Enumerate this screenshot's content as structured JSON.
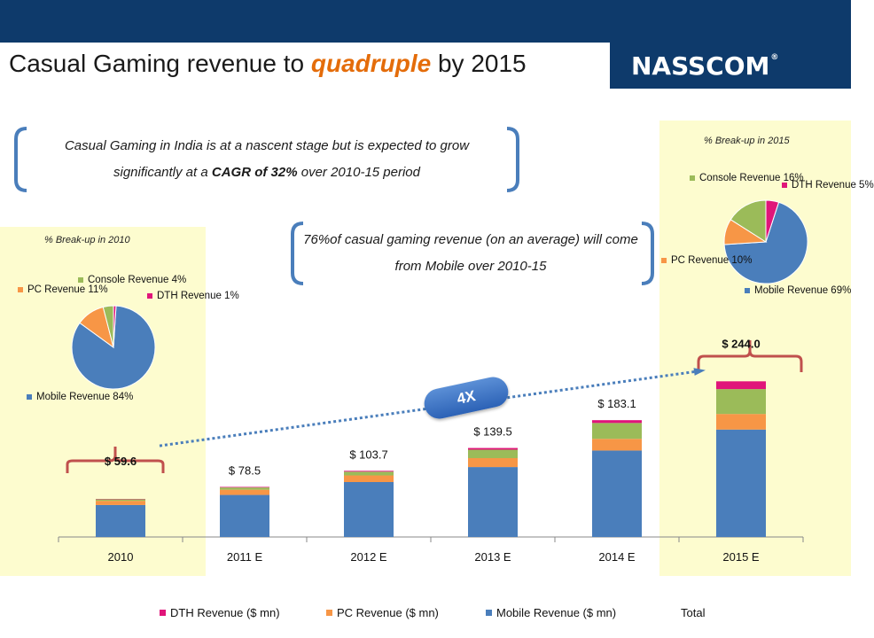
{
  "header": {
    "title_pre": "Casual Gaming revenue to ",
    "title_highlight": "quadruple",
    "title_post": " by 2015",
    "logo": "NASSCOM",
    "logo_mark": "®"
  },
  "callouts": {
    "cagr_pre": "Casual Gaming in India is at a nascent stage but is expected to grow significantly at a ",
    "cagr_bold": "CAGR of 32%",
    "cagr_post": " over 2010-15 period",
    "mobile_share": "76%of casual gaming revenue (on an average) will come from Mobile over 2010-15"
  },
  "badge": "4X",
  "colors": {
    "mobile": "#4a7ebb",
    "pc": "#f79646",
    "console": "#9bbb59",
    "dth": "#e0157a",
    "header": "#0e3a6b",
    "highlight": "#e46c0a",
    "panel": "#fdfccf",
    "brace": "#c0504d",
    "arrow": "#4a7ebb"
  },
  "pie_2010": {
    "title": "% Break-up in 2010",
    "labels": {
      "mobile": "Mobile Revenue 84%",
      "pc": "PC Revenue 11%",
      "console": "Console Revenue 4%",
      "dth": "DTH Revenue 1%"
    }
  },
  "pie_2015": {
    "title": "% Break-up in 2015",
    "labels": {
      "mobile": "Mobile Revenue 69%",
      "pc": "PC Revenue 10%",
      "console": "Console Revenue 16%",
      "dth": "DTH Revenue 5%"
    }
  },
  "chart_data": [
    {
      "type": "bar",
      "stacked": true,
      "categories": [
        "2010",
        "2011 E",
        "2012 E",
        "2013 E",
        "2014 E",
        "2015 E"
      ],
      "series": [
        {
          "name": "Mobile Revenue ($ mn)",
          "values": [
            50.1,
            65.9,
            86.1,
            109.6,
            135.5,
            168.4
          ]
        },
        {
          "name": "PC Revenue ($ mn)",
          "values": [
            6.6,
            8.2,
            10.4,
            14.0,
            18.3,
            24.4
          ]
        },
        {
          "name": "Console Revenue",
          "values": [
            2.3,
            3.5,
            5.9,
            13.2,
            24.9,
            39.0
          ]
        },
        {
          "name": "DTH Revenue ($ mn)",
          "values": [
            0.6,
            0.9,
            1.3,
            2.7,
            4.4,
            12.2
          ]
        }
      ],
      "totals": [
        59.6,
        78.5,
        103.7,
        139.5,
        183.1,
        244.0
      ],
      "total_labels": [
        "$ 59.6",
        "$ 78.5",
        "$ 103.7",
        "$ 139.5",
        "$ 183.1",
        "$ 244.0"
      ],
      "legend": [
        {
          "name": "DTH Revenue ($ mn)",
          "color": "#e0157a"
        },
        {
          "name": "PC Revenue ($ mn)",
          "color": "#f79646"
        },
        {
          "name": "Mobile Revenue ($ mn)",
          "color": "#4a7ebb"
        },
        {
          "name": "Total",
          "color": ""
        }
      ],
      "legend_position": "bottom",
      "ylim": [
        0,
        250
      ],
      "grid": false
    },
    {
      "type": "pie",
      "title": "% Break-up in 2010",
      "categories": [
        "Mobile Revenue",
        "PC Revenue",
        "Console Revenue",
        "DTH Revenue"
      ],
      "values": [
        84,
        11,
        4,
        1
      ]
    },
    {
      "type": "pie",
      "title": "% Break-up in 2015",
      "categories": [
        "Mobile Revenue",
        "PC Revenue",
        "Console Revenue",
        "DTH Revenue"
      ],
      "values": [
        69,
        10,
        16,
        5
      ]
    }
  ]
}
